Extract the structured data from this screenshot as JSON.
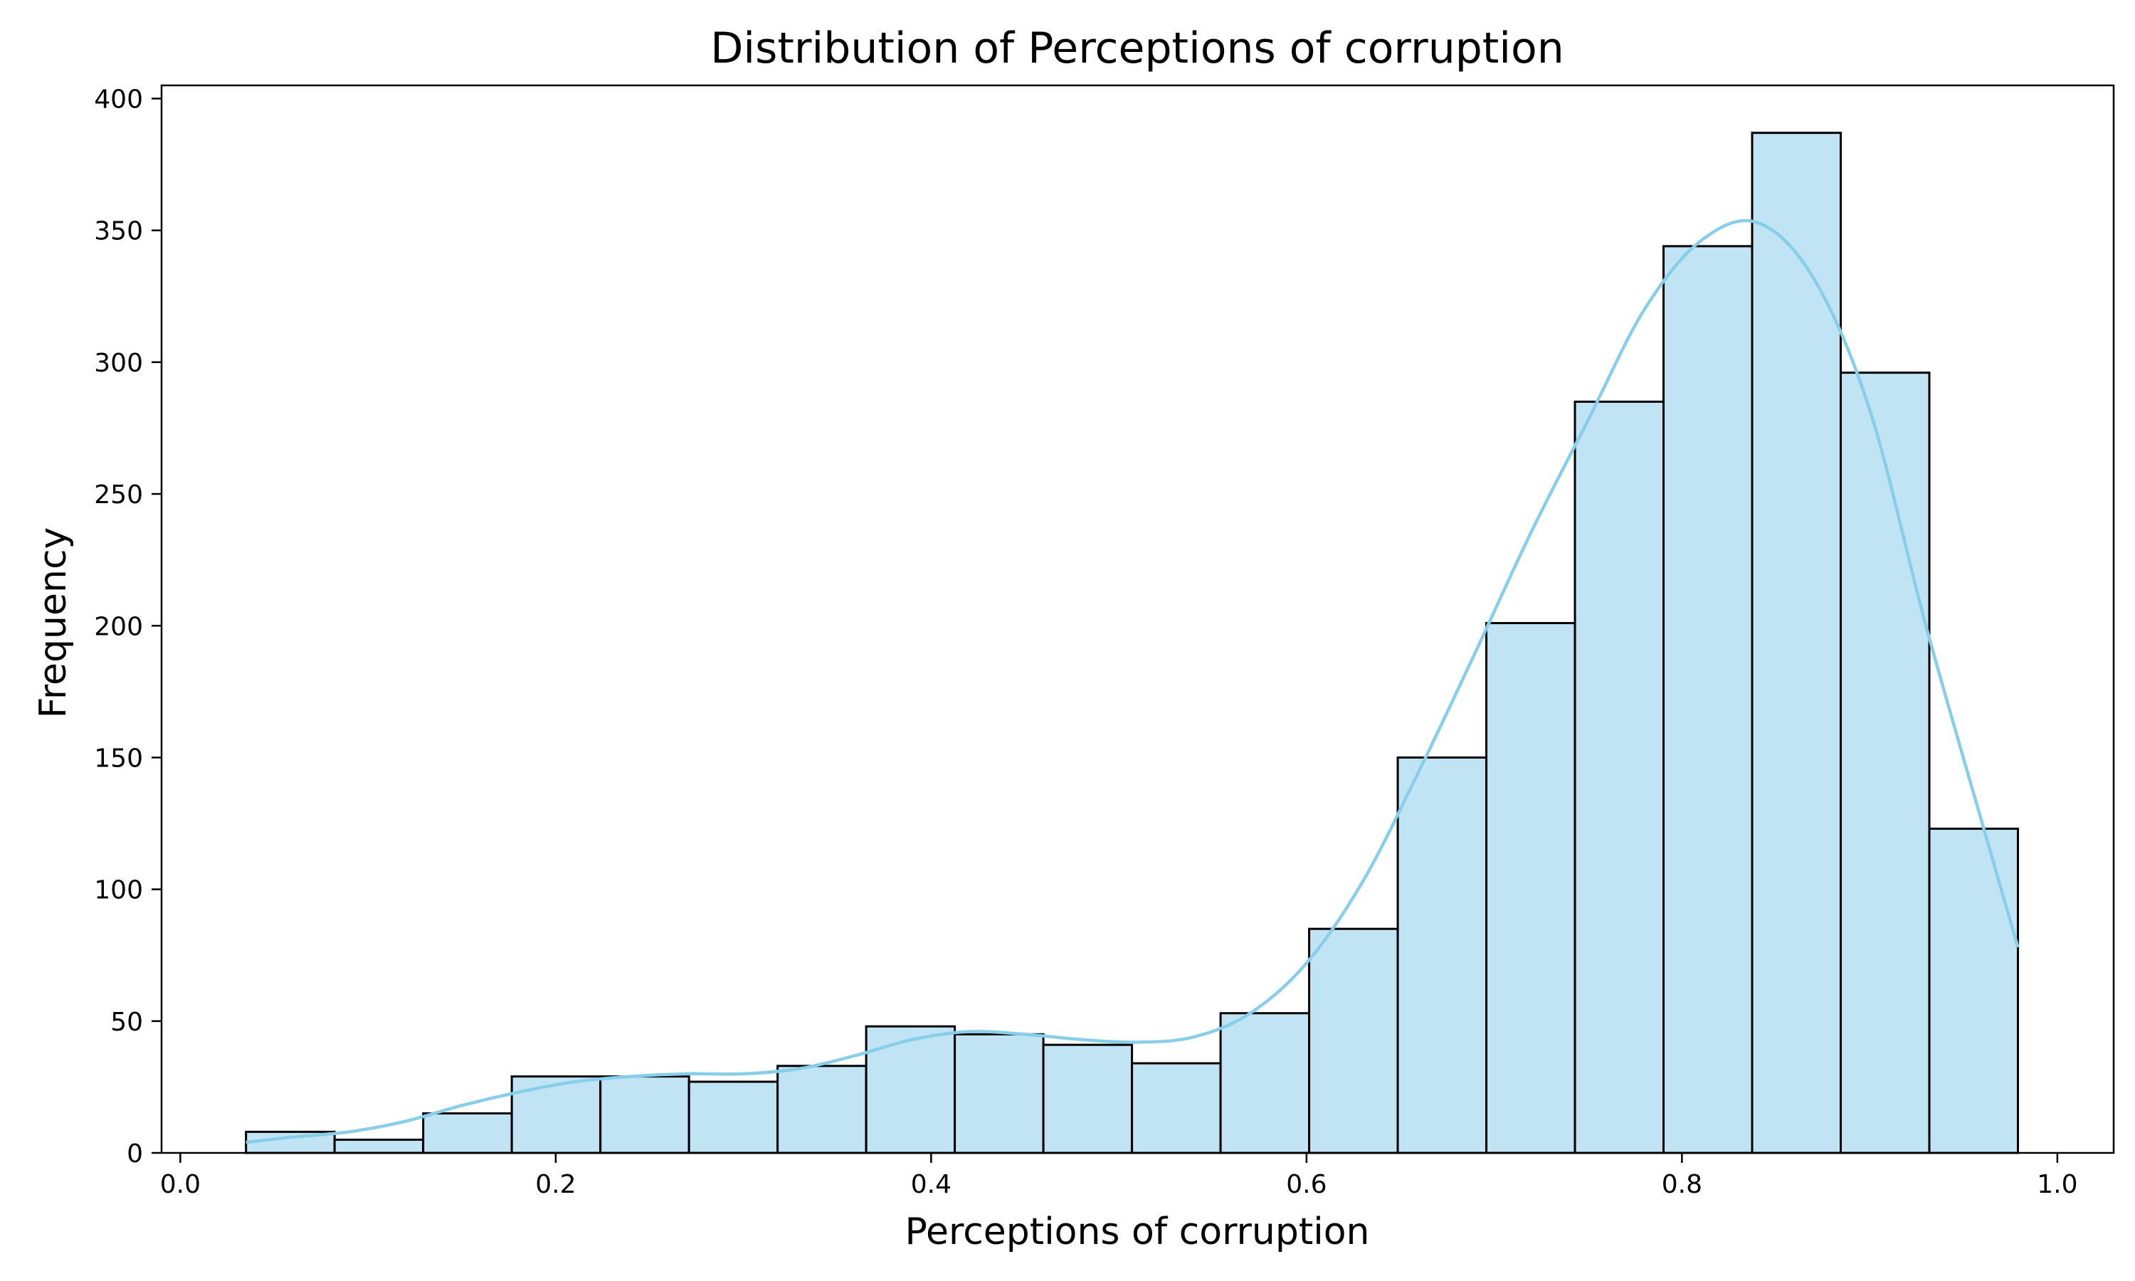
{
  "chart_data": {
    "type": "bar",
    "title": "Distribution of Perceptions of corruption",
    "xlabel": "Perceptions of corruption",
    "ylabel": "Frequency",
    "xlim": [
      -0.01,
      1.03
    ],
    "ylim": [
      0,
      405
    ],
    "xticks": [
      0.0,
      0.2,
      0.4,
      0.6,
      0.8,
      1.0
    ],
    "xtick_labels": [
      "0.0",
      "0.2",
      "0.4",
      "0.6",
      "0.8",
      "1.0"
    ],
    "yticks": [
      0,
      50,
      100,
      150,
      200,
      250,
      300,
      350,
      400
    ],
    "ytick_labels": [
      "0",
      "50",
      "100",
      "150",
      "200",
      "250",
      "300",
      "350",
      "400"
    ],
    "bin_edges": [
      0.035,
      0.0822,
      0.1294,
      0.1766,
      0.2238,
      0.271,
      0.3182,
      0.3654,
      0.4126,
      0.4598,
      0.507,
      0.5542,
      0.6014,
      0.6486,
      0.6958,
      0.743,
      0.7902,
      0.8374,
      0.8846,
      0.9318,
      0.979
    ],
    "counts": [
      8,
      5,
      15,
      29,
      29,
      27,
      33,
      48,
      45,
      41,
      34,
      53,
      85,
      150,
      201,
      285,
      344,
      387,
      296,
      123
    ],
    "kde": {
      "x": [
        0.035,
        0.06,
        0.09,
        0.12,
        0.15,
        0.18,
        0.21,
        0.24,
        0.27,
        0.3,
        0.33,
        0.36,
        0.39,
        0.42,
        0.45,
        0.48,
        0.51,
        0.54,
        0.57,
        0.6,
        0.63,
        0.66,
        0.69,
        0.72,
        0.75,
        0.78,
        0.81,
        0.84,
        0.87,
        0.9,
        0.93,
        0.96,
        0.979
      ],
      "y": [
        4,
        6,
        8,
        12,
        18,
        23,
        27,
        29,
        30,
        30,
        32,
        37,
        43,
        46,
        45,
        43,
        42,
        44,
        53,
        72,
        103,
        145,
        190,
        236,
        278,
        320,
        346,
        353,
        332,
        282,
        200,
        125,
        78
      ]
    },
    "grid": false,
    "colors": {
      "bar_fill": "#c0e4f4",
      "bar_edge": "#000000",
      "kde_line": "#87ceeb"
    }
  }
}
